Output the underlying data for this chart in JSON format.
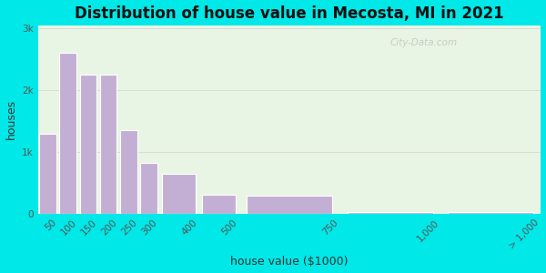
{
  "title": "Distribution of house value in Mecosta, MI in 2021",
  "xlabel": "house value ($1000)",
  "ylabel": "houses",
  "bar_left_edges": [
    0,
    50,
    100,
    150,
    200,
    250,
    300,
    400,
    500,
    750,
    1000
  ],
  "bar_widths": [
    50,
    50,
    50,
    50,
    50,
    50,
    100,
    100,
    250,
    250,
    250
  ],
  "bar_values": [
    1300,
    2600,
    2250,
    2250,
    1350,
    820,
    650,
    310,
    290,
    30,
    30
  ],
  "bar_color": "#c4afd4",
  "bar_edgecolor": "#ffffff",
  "bg_outer": "#00e8e8",
  "bg_plot": "#e8f5e4",
  "title_fontsize": 12,
  "axis_label_fontsize": 9,
  "tick_fontsize": 7.5,
  "ytick_labels": [
    "0",
    "1k",
    "2k",
    "3k"
  ],
  "ytick_values": [
    0,
    1000,
    2000,
    3000
  ],
  "ylim": [
    0,
    3050
  ],
  "xlim": [
    0,
    1250
  ],
  "xtick_positions": [
    50,
    100,
    150,
    200,
    250,
    300,
    400,
    500,
    750,
    1000,
    1250
  ],
  "xtick_labels": [
    "50",
    "100",
    "150",
    "200",
    "250",
    "300",
    "400",
    "500",
    "750",
    "1,000",
    "> 1,000"
  ],
  "watermark": "City-Data.com"
}
